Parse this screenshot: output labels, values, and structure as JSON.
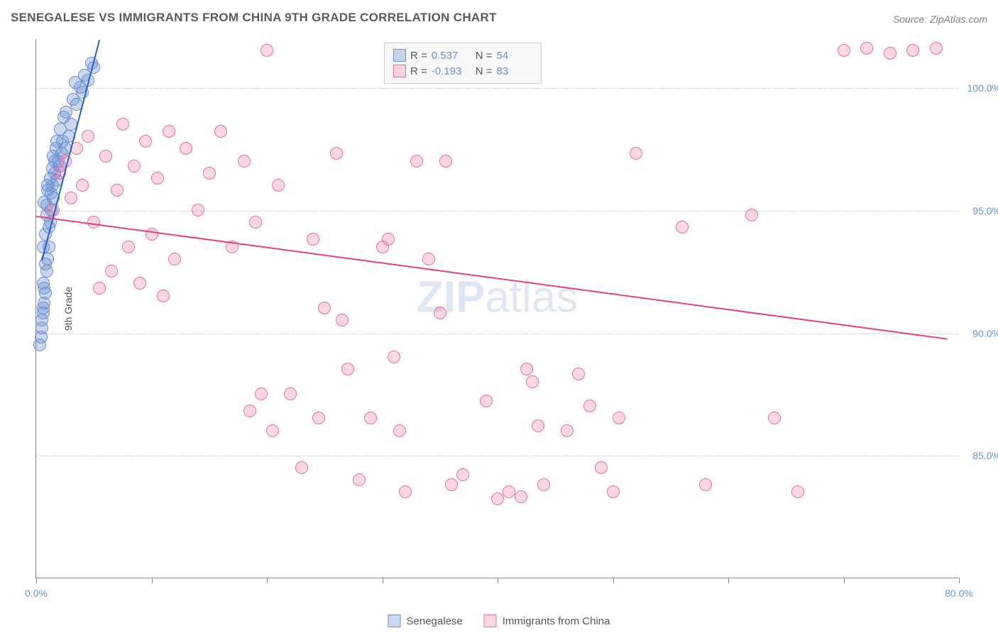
{
  "title": "SENEGALESE VS IMMIGRANTS FROM CHINA 9TH GRADE CORRELATION CHART",
  "source": "Source: ZipAtlas.com",
  "ylabel": "9th Grade",
  "watermark_bold": "ZIP",
  "watermark_light": "atlas",
  "chart": {
    "type": "scatter",
    "xlim": [
      0,
      80
    ],
    "ylim": [
      80,
      102
    ],
    "x_ticks": [
      0,
      10,
      20,
      30,
      40,
      50,
      60,
      70,
      80
    ],
    "y_ticks": [
      85,
      90,
      95,
      100
    ],
    "y_tick_labels": [
      "85.0%",
      "90.0%",
      "95.0%",
      "100.0%"
    ],
    "x_tick_labels_shown": {
      "0": "0.0%",
      "80": "80.0%"
    },
    "grid_color": "#cccccc",
    "background_color": "#ffffff",
    "series": [
      {
        "name": "Senegalese",
        "label": "Senegalese",
        "color_fill": "rgba(107,143,212,0.35)",
        "color_stroke": "#6b8fd4",
        "r_value": "0.537",
        "n_value": "54",
        "trend": {
          "x1": 0.5,
          "y1": 93.0,
          "x2": 5.5,
          "y2": 102.0,
          "color": "#2a5fc9"
        },
        "points": [
          [
            0.3,
            89.5
          ],
          [
            0.5,
            90.2
          ],
          [
            0.6,
            90.8
          ],
          [
            0.7,
            91.2
          ],
          [
            0.8,
            91.6
          ],
          [
            0.6,
            92.0
          ],
          [
            0.9,
            92.5
          ],
          [
            1.0,
            93.0
          ],
          [
            1.1,
            93.5
          ],
          [
            0.8,
            94.0
          ],
          [
            1.2,
            94.5
          ],
          [
            1.3,
            95.0
          ],
          [
            0.7,
            95.3
          ],
          [
            1.5,
            95.5
          ],
          [
            1.4,
            96.0
          ],
          [
            1.8,
            96.2
          ],
          [
            1.6,
            96.5
          ],
          [
            2.0,
            96.8
          ],
          [
            1.9,
            97.0
          ],
          [
            2.2,
            97.3
          ],
          [
            2.5,
            97.5
          ],
          [
            2.3,
            97.8
          ],
          [
            2.8,
            98.0
          ],
          [
            3.0,
            98.5
          ],
          [
            2.6,
            99.0
          ],
          [
            3.5,
            99.3
          ],
          [
            3.2,
            99.5
          ],
          [
            4.0,
            99.8
          ],
          [
            3.8,
            100.0
          ],
          [
            4.5,
            100.3
          ],
          [
            4.2,
            100.5
          ],
          [
            5.0,
            100.8
          ],
          [
            4.8,
            101.0
          ],
          [
            1.0,
            95.8
          ],
          [
            1.2,
            96.3
          ],
          [
            0.9,
            94.8
          ],
          [
            1.5,
            97.2
          ],
          [
            0.6,
            93.5
          ],
          [
            0.8,
            92.8
          ],
          [
            1.1,
            94.3
          ],
          [
            1.3,
            95.7
          ],
          [
            0.7,
            91.8
          ],
          [
            0.5,
            90.5
          ],
          [
            1.0,
            96.0
          ],
          [
            0.9,
            95.2
          ],
          [
            1.4,
            96.7
          ],
          [
            1.7,
            97.5
          ],
          [
            2.1,
            98.3
          ],
          [
            2.4,
            98.8
          ],
          [
            0.4,
            89.8
          ],
          [
            0.6,
            91.0
          ],
          [
            1.6,
            97.0
          ],
          [
            1.8,
            97.8
          ],
          [
            3.4,
            100.2
          ]
        ]
      },
      {
        "name": "Immigrants from China",
        "label": "Immigrants from China",
        "color_fill": "rgba(236,110,150,0.28)",
        "color_stroke": "#ec6e96",
        "r_value": "-0.193",
        "n_value": "83",
        "trend": {
          "x1": 0.0,
          "y1": 94.8,
          "x2": 79.0,
          "y2": 89.8,
          "color": "#e4417a"
        },
        "points": [
          [
            1.5,
            95.0
          ],
          [
            2.0,
            96.5
          ],
          [
            2.5,
            97.0
          ],
          [
            3.0,
            95.5
          ],
          [
            3.5,
            97.5
          ],
          [
            4.0,
            96.0
          ],
          [
            4.5,
            98.0
          ],
          [
            5.0,
            94.5
          ],
          [
            5.5,
            91.8
          ],
          [
            6.0,
            97.2
          ],
          [
            6.5,
            92.5
          ],
          [
            7.0,
            95.8
          ],
          [
            7.5,
            98.5
          ],
          [
            8.0,
            93.5
          ],
          [
            8.5,
            96.8
          ],
          [
            9.0,
            92.0
          ],
          [
            9.5,
            97.8
          ],
          [
            10.0,
            94.0
          ],
          [
            10.5,
            96.3
          ],
          [
            11.0,
            91.5
          ],
          [
            11.5,
            98.2
          ],
          [
            12.0,
            93.0
          ],
          [
            13.0,
            97.5
          ],
          [
            14.0,
            95.0
          ],
          [
            15.0,
            96.5
          ],
          [
            16.0,
            98.2
          ],
          [
            17.0,
            93.5
          ],
          [
            18.0,
            97.0
          ],
          [
            19.0,
            94.5
          ],
          [
            20.0,
            101.5
          ],
          [
            21.0,
            96.0
          ],
          [
            22.0,
            87.5
          ],
          [
            23.0,
            84.5
          ],
          [
            24.0,
            93.8
          ],
          [
            25.0,
            91.0
          ],
          [
            26.0,
            97.3
          ],
          [
            27.0,
            88.5
          ],
          [
            28.0,
            84.0
          ],
          [
            29.0,
            86.5
          ],
          [
            30.0,
            93.5
          ],
          [
            31.0,
            89.0
          ],
          [
            31.5,
            86.0
          ],
          [
            32.0,
            83.5
          ],
          [
            33.0,
            97.0
          ],
          [
            34.0,
            93.0
          ],
          [
            35.0,
            90.8
          ],
          [
            36.0,
            83.8
          ],
          [
            37.0,
            84.2
          ],
          [
            38.0,
            101.5
          ],
          [
            39.0,
            87.2
          ],
          [
            40.0,
            83.2
          ],
          [
            41.0,
            83.5
          ],
          [
            42.0,
            83.3
          ],
          [
            43.0,
            88.0
          ],
          [
            44.0,
            83.8
          ],
          [
            24.5,
            86.5
          ],
          [
            26.5,
            90.5
          ],
          [
            35.5,
            97.0
          ],
          [
            36.5,
            101.3
          ],
          [
            42.5,
            88.5
          ],
          [
            43.5,
            86.2
          ],
          [
            46.0,
            86.0
          ],
          [
            47.0,
            88.3
          ],
          [
            48.0,
            87.0
          ],
          [
            49.0,
            84.5
          ],
          [
            50.0,
            83.5
          ],
          [
            52.0,
            97.3
          ],
          [
            56.0,
            94.3
          ],
          [
            58.0,
            83.8
          ],
          [
            62.0,
            94.8
          ],
          [
            64.0,
            86.5
          ],
          [
            66.0,
            83.5
          ],
          [
            70.0,
            101.5
          ],
          [
            72.0,
            101.6
          ],
          [
            74.0,
            101.4
          ],
          [
            76.0,
            101.5
          ],
          [
            78.0,
            101.6
          ],
          [
            34.5,
            101.3
          ],
          [
            18.5,
            86.8
          ],
          [
            19.5,
            87.5
          ],
          [
            20.5,
            86.0
          ],
          [
            30.5,
            93.8
          ],
          [
            50.5,
            86.5
          ]
        ]
      }
    ]
  }
}
